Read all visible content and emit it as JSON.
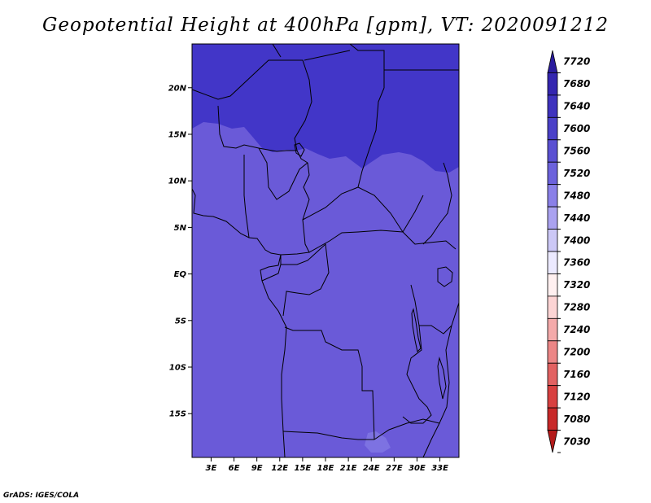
{
  "title": "Geopotential Height at 400hPa [gpm], VT: 2020091212",
  "credit": "GrADS: IGES/COLA",
  "map": {
    "lat_labels": [
      "20N",
      "15N",
      "10N",
      "5N",
      "EQ",
      "5S",
      "10S",
      "15S"
    ],
    "lat_values": [
      20,
      15,
      10,
      5,
      0,
      -5,
      -10,
      -15
    ],
    "lon_labels": [
      "3E",
      "6E",
      "9E",
      "12E",
      "15E",
      "18E",
      "21E",
      "24E",
      "27E",
      "30E",
      "33E"
    ],
    "lon_values": [
      3,
      6,
      9,
      12,
      15,
      18,
      21,
      24,
      27,
      30,
      33
    ],
    "lon_range": [
      0.5,
      35.5
    ],
    "lat_range": [
      -19.7,
      24.7
    ],
    "colors": {
      "field_high": "#4236c8",
      "field_mid": "#6a5ad8",
      "field_low": "#7d72e2",
      "coast": "#000000"
    }
  },
  "colorbar": {
    "levels": [
      "7720",
      "7680",
      "7640",
      "7600",
      "7560",
      "7520",
      "7480",
      "7440",
      "7400",
      "7360",
      "7320",
      "7280",
      "7240",
      "7200",
      "7160",
      "7120",
      "7080",
      "7030"
    ],
    "colors": [
      "#2a1c9e",
      "#3426b0",
      "#3e32be",
      "#4a40c8",
      "#5a50d2",
      "#6c62dc",
      "#8a80e8",
      "#aaa2f0",
      "#ccc8f6",
      "#eceaff",
      "#fff0f0",
      "#fcd4d4",
      "#f4aaaa",
      "#ec8686",
      "#e26262",
      "#d84040",
      "#c82828",
      "#b41a1a"
    ]
  }
}
